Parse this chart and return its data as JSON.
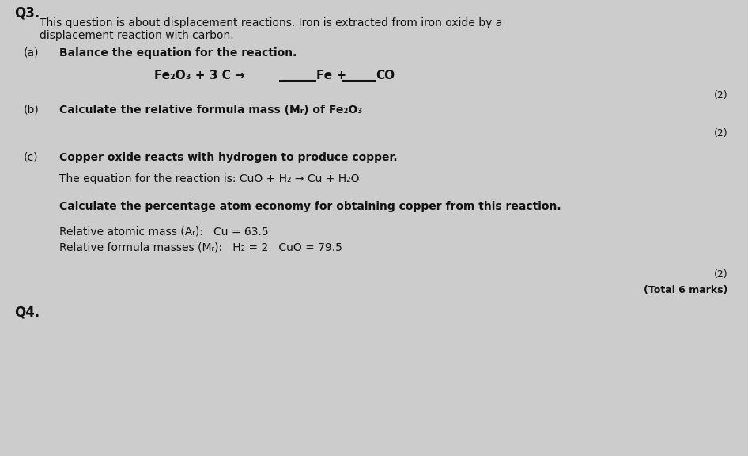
{
  "background_color": "#cccccc",
  "text_color": "#111111",
  "question_number": "Q3.",
  "intro_text_line1": "This question is about displacement reactions. Iron is extracted from iron oxide by a",
  "intro_text_line2": "displacement reaction with carbon.",
  "part_a_label": "(a)",
  "part_a_text": "Balance the equation for the reaction.",
  "marks_a": "(2)",
  "part_b_label": "(b)",
  "part_b_text": "Calculate the relative formula mass (Mᵣ) of Fe₂O₃",
  "marks_b": "(2)",
  "part_c_label": "(c)",
  "part_c_text1": "Copper oxide reacts with hydrogen to produce copper.",
  "part_c_text2": "The equation for the reaction is: CuO + H₂ → Cu + H₂O",
  "part_c_text3": "Calculate the percentage atom economy for obtaining copper from this reaction.",
  "part_c_text4a": "Relative atomic mass (Aᵣ):   Cu = 63.5",
  "part_c_text4b": "Relative formula masses (Mᵣ):   H₂ = 2   CuO = 79.5",
  "marks_c": "(2)",
  "total_marks": "(Total 6 marks)",
  "next_label": "Q4.",
  "eq_left": "Fe₂O₃ + 3 C →",
  "eq_mid": "Fe +",
  "eq_right": "CO",
  "font_size_q": 11,
  "font_size_body": 10,
  "font_size_eq": 11,
  "font_size_marks": 9
}
